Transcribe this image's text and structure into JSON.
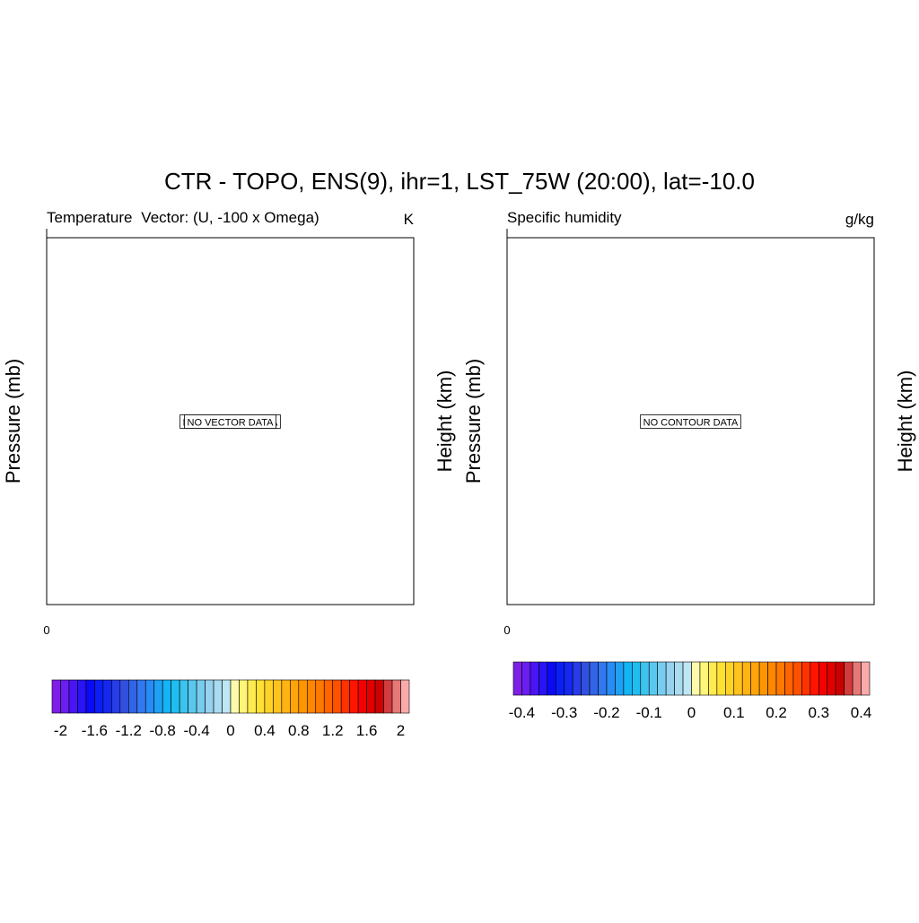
{
  "title": "CTR - TOPO, ENS(9), ihr=1, LST_75W (20:00), lat=-10.0",
  "colormap": [
    "#7e1ee6",
    "#6a1ef0",
    "#4a14f5",
    "#2814f5",
    "#0a0af5",
    "#0a1ef5",
    "#1428f0",
    "#283ce8",
    "#3250e0",
    "#3264e6",
    "#3278f0",
    "#288cf5",
    "#1ea0f5",
    "#14b4f5",
    "#1ebef0",
    "#3cc3ee",
    "#5ac8ee",
    "#78cdee",
    "#96d2f0",
    "#aadcf0",
    "#bee6f5",
    "#fffaaa",
    "#fff578",
    "#ffeb50",
    "#ffe132",
    "#ffd228",
    "#ffc31e",
    "#ffb414",
    "#ffa50a",
    "#ff9600",
    "#ff8700",
    "#ff7800",
    "#ff6400",
    "#ff5000",
    "#ff3200",
    "#ff1400",
    "#f50000",
    "#e10000",
    "#cd0000",
    "#d23c3c",
    "#e67878",
    "#faaaaa"
  ],
  "chart_data": [
    {
      "type": "contour",
      "left_label": "Temperature",
      "center_label": "Vector: (U, -100 x Omega)",
      "right_label": "K",
      "ylabel": "Pressure (mb)",
      "y2label": "Height (km)",
      "xticks": [
        0
      ],
      "notes": [
        "NO CONTOUR DATA",
        "NO VECTOR DATA"
      ],
      "colorbar": {
        "lim": [
          -2.1,
          2.1
        ],
        "ticks": [
          -2,
          -1.6,
          -1.2,
          -0.8,
          -0.4,
          0,
          0.4,
          0.8,
          1.2,
          1.6,
          2
        ]
      }
    },
    {
      "type": "contour",
      "left_label": "Specific humidity",
      "right_label": "g/kg",
      "ylabel": "Pressure (mb)",
      "y2label": "Height (km)",
      "xticks": [
        0
      ],
      "notes": [
        "NO CONTOUR DATA"
      ],
      "colorbar": {
        "lim": [
          -0.42,
          0.42
        ],
        "ticks": [
          -0.4,
          -0.3,
          -0.2,
          -0.1,
          0,
          0.1,
          0.2,
          0.3,
          0.4
        ]
      }
    }
  ]
}
